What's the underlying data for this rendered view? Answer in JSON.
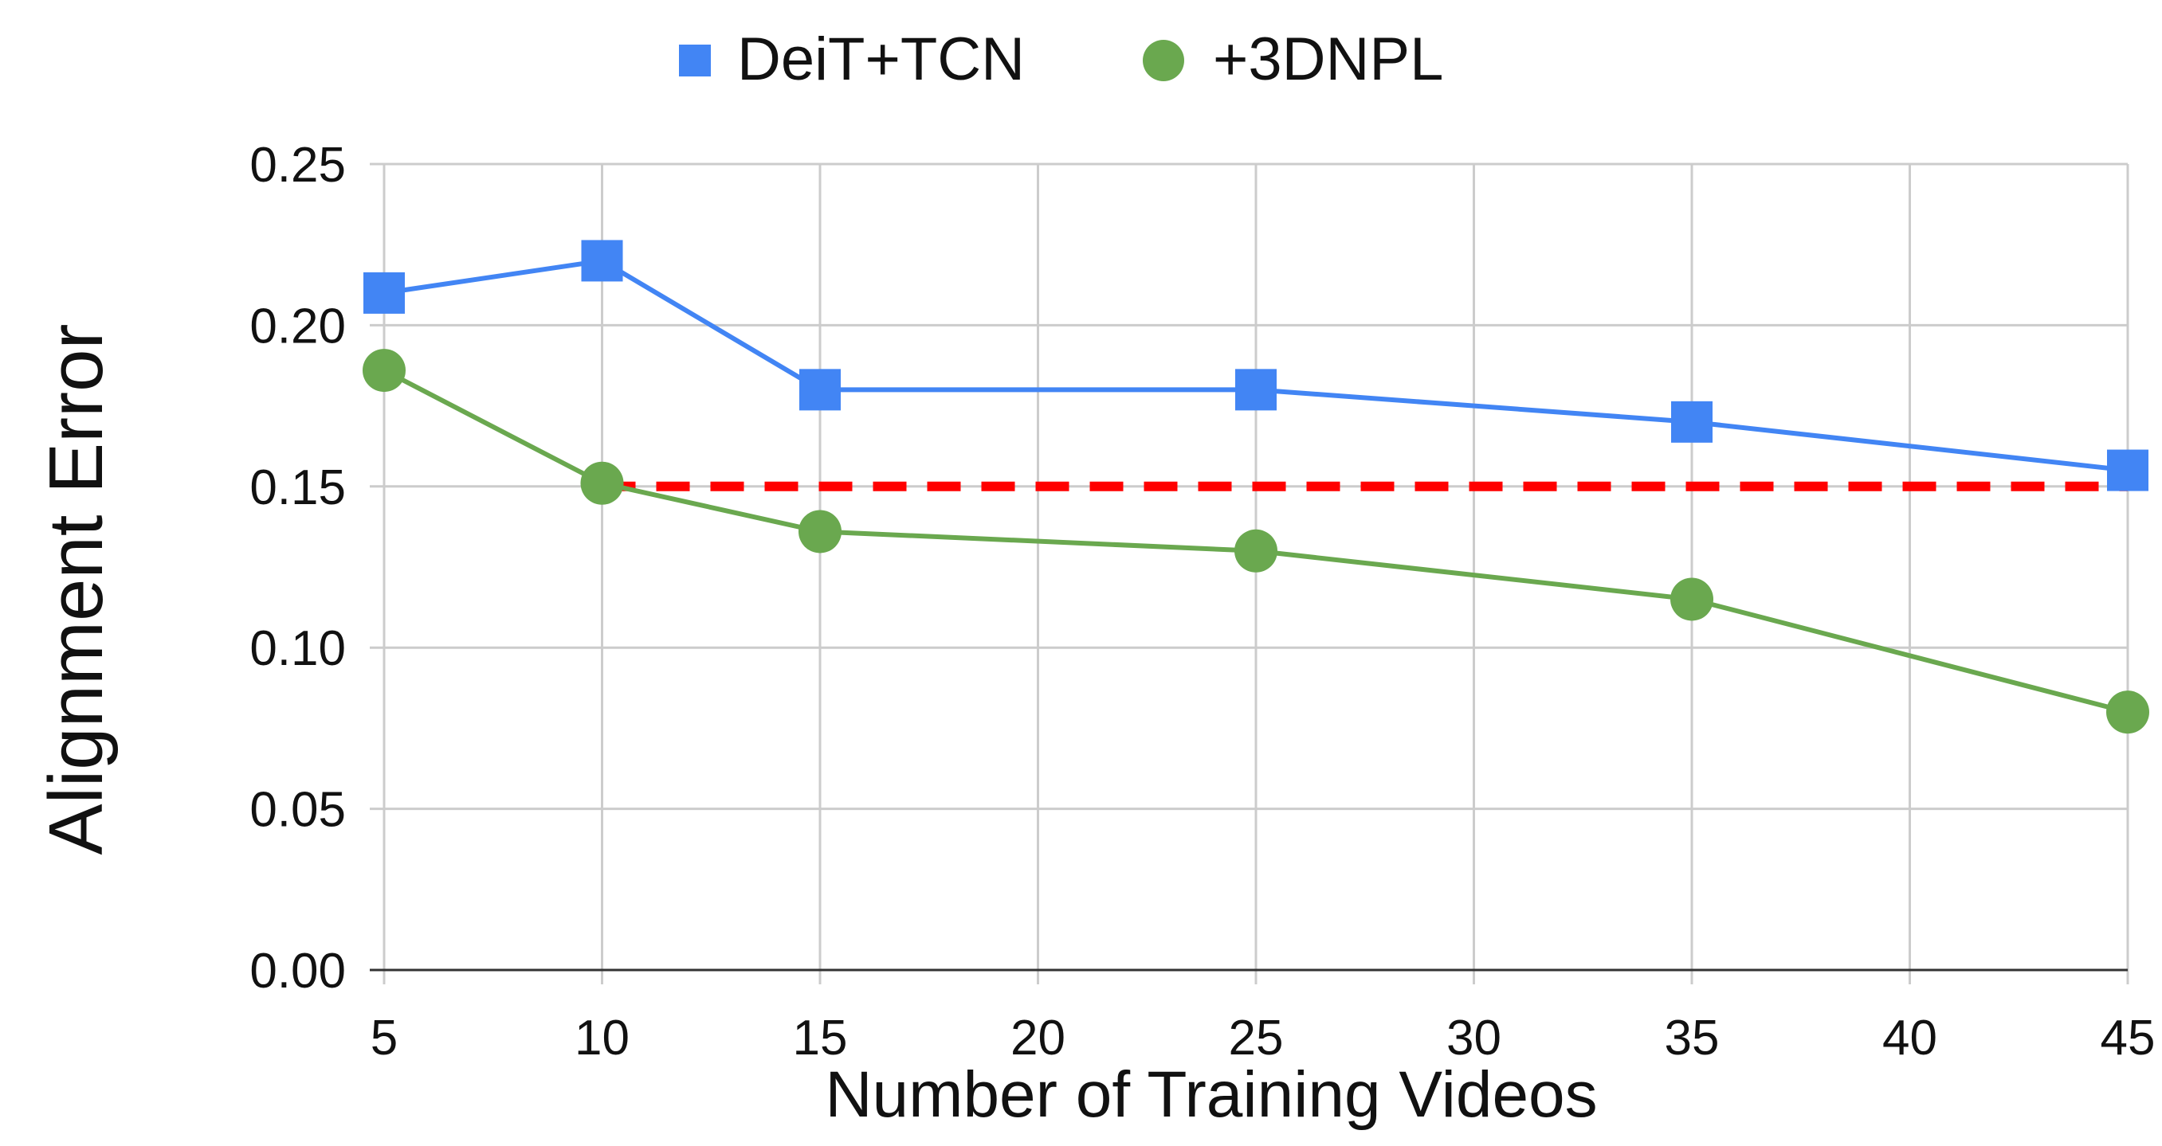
{
  "chart_data": {
    "type": "line",
    "title": "",
    "xlabel": "Number of Training Videos",
    "ylabel": "Alignment Error",
    "xlim": [
      5,
      45
    ],
    "ylim": [
      0,
      0.25
    ],
    "x_ticks": [
      5,
      10,
      15,
      20,
      25,
      30,
      35,
      40,
      45
    ],
    "x_tick_labels": [
      "5",
      "10",
      "15",
      "20",
      "25",
      "30",
      "35",
      "40",
      "45"
    ],
    "y_ticks": [
      0,
      0.05,
      0.1,
      0.15,
      0.2,
      0.25
    ],
    "y_tick_labels": [
      "0.00",
      "0.05",
      "0.10",
      "0.15",
      "0.20",
      "0.25"
    ],
    "grid": true,
    "legend_position": "top-center",
    "series": [
      {
        "name": "DeiT+TCN",
        "marker": "square",
        "color": "#4285F4",
        "x": [
          5,
          10,
          15,
          25,
          35,
          45
        ],
        "values": [
          0.21,
          0.22,
          0.18,
          0.18,
          0.17,
          0.155
        ]
      },
      {
        "name": "+3DNPL",
        "marker": "circle",
        "color": "#6AA84F",
        "x": [
          5,
          10,
          15,
          25,
          35,
          45
        ],
        "values": [
          0.186,
          0.151,
          0.136,
          0.13,
          0.115,
          0.08
        ]
      }
    ],
    "reference_line": {
      "style": "dashed",
      "color": "#FF0000",
      "x": [
        10,
        45
      ],
      "y": 0.15
    }
  }
}
